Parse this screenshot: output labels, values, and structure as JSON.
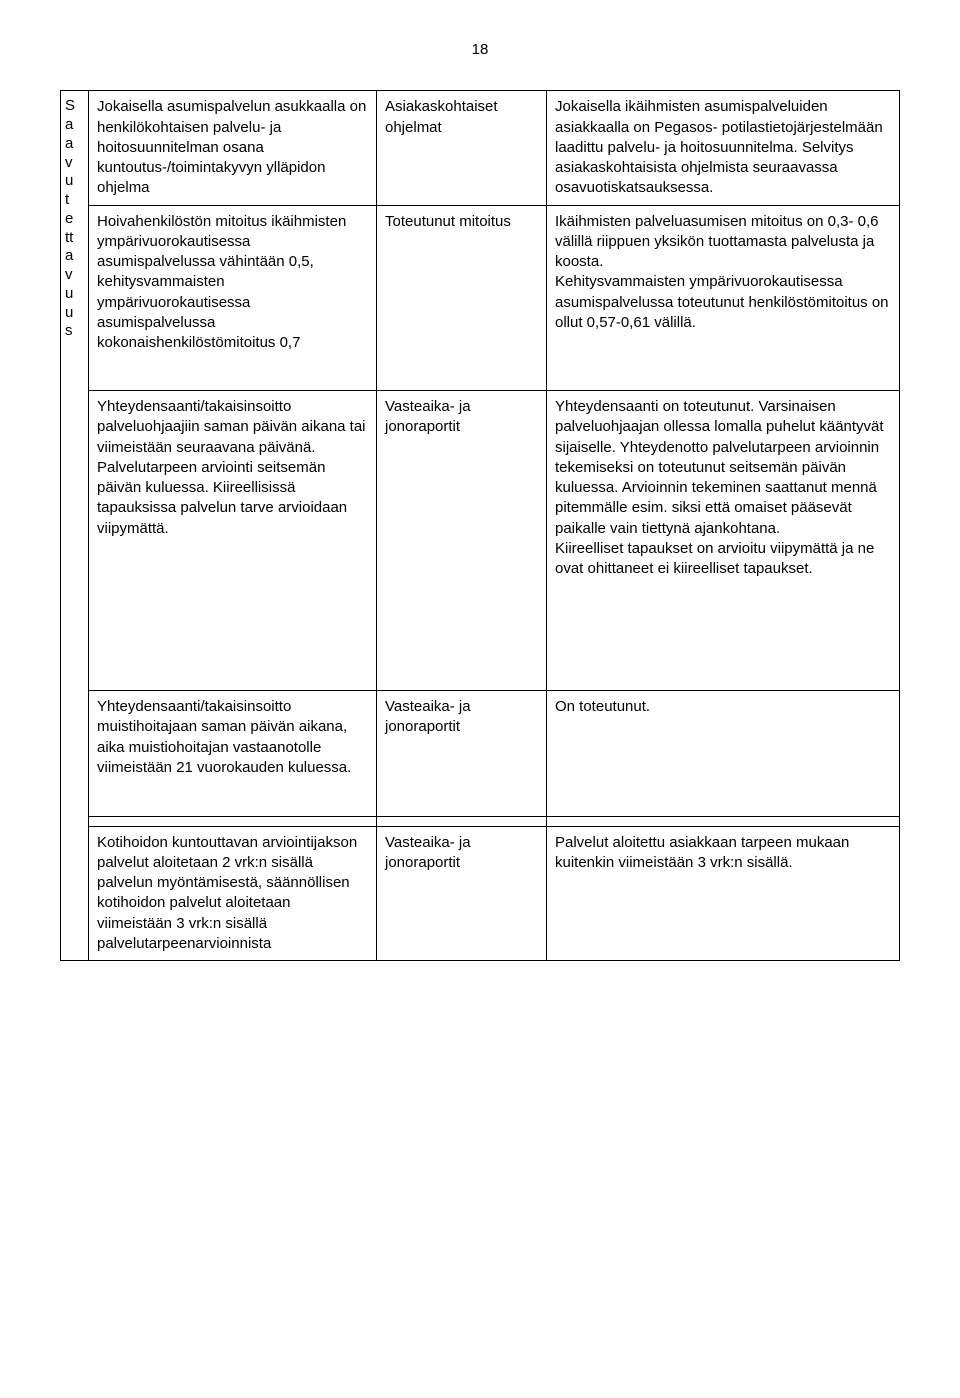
{
  "page_number": "18",
  "side_label_chars": [
    "S",
    "a",
    "a",
    "v",
    "u",
    "t",
    "e",
    "tt",
    "a",
    "v",
    "u",
    "u",
    "s"
  ],
  "rows": [
    {
      "c1": "Jokaisella asumispalvelun asukkaalla on henkilökohtaisen palvelu- ja hoitosuunnitelman osana kuntoutus-/toimintakyvyn ylläpidon ohjelma",
      "c2": "Asiakaskohtaiset ohjelmat",
      "c3": "Jokaisella ikäihmisten asumispalveluiden asiakkaalla on Pegasos- potilastietojärjestelmään laadittu palvelu- ja hoitosuunnitelma. Selvitys asiakaskohtaisista ohjelmista seuraavassa osavuotiskatsauksessa."
    }
  ],
  "group": {
    "sub": [
      {
        "c1": "Hoivahenkilöstön mitoitus ikäihmisten ympärivuorokautisessa asumispalvelussa vähintään 0,5, kehitysvammaisten ympärivuorokautisessa asumispalvelussa kokonaishenkilöstömitoitus 0,7",
        "c2": "Toteutunut mitoitus",
        "c3": "Ikäihmisten palveluasumisen mitoitus on 0,3- 0,6 välillä riippuen yksikön tuottamasta palvelusta ja koosta.\nKehitysvammaisten ympärivuorokautisessa asumispalvelussa toteutunut henkilöstömitoitus on ollut 0,57-0,61 välillä."
      },
      {
        "c1": "Yhteydensaanti/takaisinsoitto palveluohjaajiin saman päivän aikana tai viimeistään seuraavana päivänä. Palvelutarpeen arviointi seitsemän päivän kuluessa. Kiireellisissä tapauksissa palvelun tarve arvioidaan viipymättä.",
        "c2": "Vasteaika- ja jonoraportit",
        "c3": "Yhteydensaanti on toteutunut. Varsinaisen palveluohjaajan ollessa lomalla puhelut kääntyvät sijaiselle. Yhteydenotto palvelutarpeen arvioinnin tekemiseksi on toteutunut seitsemän päivän kuluessa. Arvioinnin tekeminen saattanut mennä pitemmälle esim. siksi että omaiset pääsevät paikalle vain tiettynä ajankohtana.\nKiireelliset tapaukset on arvioitu viipymättä ja ne ovat ohittaneet ei kiireelliset tapaukset."
      },
      {
        "c1": "Yhteydensaanti/takaisinsoitto muistihoitajaan saman päivän aikana, aika muistiohoitajan vastaanotolle viimeistään 21 vuorokauden kuluessa.",
        "c2": "Vasteaika- ja jonoraportit",
        "c3": "On toteutunut."
      }
    ]
  },
  "row_last": {
    "c1": "Kotihoidon kuntouttavan arviointijakson palvelut aloitetaan 2 vrk:n sisällä palvelun myöntämisestä, säännöllisen kotihoidon palvelut aloitetaan viimeistään 3 vrk:n sisällä palvelutarpeenarvioinnista",
    "c2": "Vasteaika- ja jonoraportit",
    "c3": "Palvelut aloitettu asiakkaan tarpeen mukaan kuitenkin viimeistään 3 vrk:n sisällä."
  }
}
